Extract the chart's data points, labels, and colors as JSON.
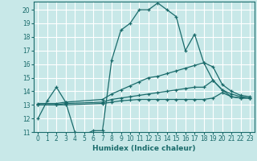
{
  "title": "",
  "xlabel": "Humidex (Indice chaleur)",
  "ylabel": "",
  "xlim": [
    -0.5,
    23.5
  ],
  "ylim": [
    11,
    20.6
  ],
  "yticks": [
    11,
    12,
    13,
    14,
    15,
    16,
    17,
    18,
    19,
    20
  ],
  "xticks": [
    0,
    1,
    2,
    3,
    4,
    5,
    6,
    7,
    8,
    9,
    10,
    11,
    12,
    13,
    14,
    15,
    16,
    17,
    18,
    19,
    20,
    21,
    22,
    23
  ],
  "background_color": "#c8e8e8",
  "grid_color": "#ffffff",
  "line_color": "#1a6b6b",
  "lines": [
    {
      "x": [
        0,
        1,
        2,
        3,
        4,
        5,
        6,
        7,
        8,
        9,
        10,
        11,
        12,
        13,
        14,
        15,
        16,
        17,
        18,
        19,
        20,
        21,
        22,
        23
      ],
      "y": [
        12.0,
        13.3,
        14.3,
        13.2,
        11.0,
        10.8,
        11.1,
        11.1,
        16.3,
        18.5,
        19.0,
        20.0,
        20.0,
        20.5,
        20.0,
        19.5,
        17.0,
        18.2,
        16.1,
        14.8,
        14.1,
        13.6,
        13.5,
        13.5
      ]
    },
    {
      "x": [
        0,
        2,
        3,
        7,
        8,
        9,
        10,
        11,
        12,
        13,
        14,
        15,
        16,
        17,
        18,
        19,
        20,
        21,
        22,
        23
      ],
      "y": [
        13.1,
        13.1,
        13.2,
        13.4,
        13.8,
        14.1,
        14.4,
        14.7,
        15.0,
        15.1,
        15.3,
        15.5,
        15.7,
        15.9,
        16.1,
        15.8,
        14.5,
        14.0,
        13.7,
        13.6
      ]
    },
    {
      "x": [
        0,
        2,
        3,
        7,
        8,
        9,
        10,
        11,
        12,
        13,
        14,
        15,
        16,
        17,
        18,
        19,
        20,
        21,
        22,
        23
      ],
      "y": [
        13.0,
        13.0,
        13.1,
        13.2,
        13.4,
        13.5,
        13.6,
        13.7,
        13.8,
        13.9,
        14.0,
        14.1,
        14.2,
        14.3,
        14.3,
        14.8,
        14.1,
        13.8,
        13.6,
        13.5
      ]
    },
    {
      "x": [
        0,
        2,
        3,
        7,
        8,
        9,
        10,
        11,
        12,
        13,
        14,
        15,
        16,
        17,
        18,
        19,
        20,
        21,
        22,
        23
      ],
      "y": [
        13.0,
        13.0,
        13.0,
        13.1,
        13.2,
        13.3,
        13.35,
        13.4,
        13.4,
        13.4,
        13.4,
        13.4,
        13.4,
        13.4,
        13.4,
        13.5,
        13.9,
        13.6,
        13.5,
        13.5
      ]
    }
  ]
}
